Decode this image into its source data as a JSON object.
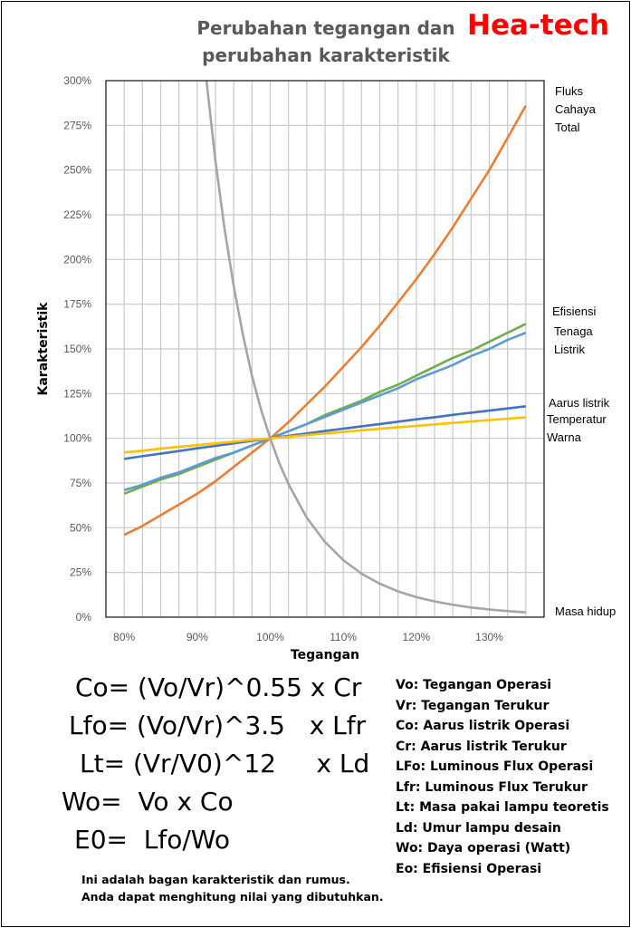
{
  "brand": "Hea-tech",
  "chart_data": {
    "type": "line",
    "title": "Perubahan tegangan dan perubahan karakteristik",
    "xlabel": "Tegangan",
    "ylabel": "Karakteristik",
    "xlim": [
      77.5,
      137.5
    ],
    "ylim": [
      0,
      300
    ],
    "x_ticks": [
      "80%",
      "90%",
      "100%",
      "110%",
      "120%",
      "130%"
    ],
    "x_tick_values": [
      80,
      90,
      100,
      110,
      120,
      130
    ],
    "y_ticks": [
      "0%",
      "25%",
      "50%",
      "75%",
      "100%",
      "125%",
      "150%",
      "175%",
      "200%",
      "225%",
      "250%",
      "275%",
      "300%"
    ],
    "grid": true,
    "x": [
      80,
      82.5,
      85,
      87.5,
      90,
      92.5,
      95,
      97.5,
      100,
      102.5,
      105,
      107.5,
      110,
      112.5,
      115,
      117.5,
      120,
      122.5,
      125,
      127.5,
      130,
      132.5,
      135
    ],
    "series": [
      {
        "name": "Fluks Cahaya Total",
        "color": "#ed7d31",
        "values": [
          46,
          51,
          57,
          63,
          69,
          76,
          84,
          92,
          100,
          109,
          119,
          129,
          140,
          151,
          163,
          176,
          189,
          203,
          218,
          234,
          250,
          268,
          286
        ]
      },
      {
        "name": "Efisiensi",
        "color": "#70ad47",
        "values": [
          69,
          73,
          77,
          80,
          84,
          88,
          92,
          96,
          100,
          104,
          108,
          113,
          117,
          121,
          126,
          130,
          135,
          140,
          145,
          149,
          154,
          159,
          164
        ]
      },
      {
        "name": "Tenaga Listrik",
        "color": "#5b9bd5",
        "values": [
          71,
          74,
          78,
          81,
          85,
          89,
          92,
          96,
          100,
          104,
          108,
          112,
          116,
          120,
          124,
          128,
          133,
          137,
          141,
          146,
          150,
          155,
          159
        ]
      },
      {
        "name": "Aarus listrik",
        "color": "#4472c4",
        "values": [
          88.5,
          90.0,
          91.4,
          92.9,
          94.4,
          95.8,
          97.2,
          98.6,
          100,
          101.4,
          102.7,
          104.1,
          105.4,
          106.7,
          108.0,
          109.3,
          110.6,
          111.8,
          113.1,
          114.3,
          115.5,
          116.7,
          117.9
        ]
      },
      {
        "name": "Temperatur Warna",
        "color": "#ffc000",
        "values": [
          92.1,
          93.1,
          94.2,
          95.2,
          96.2,
          97.2,
          98.1,
          99.1,
          100,
          100.9,
          101.8,
          102.7,
          103.6,
          104.5,
          105.3,
          106.2,
          107.0,
          107.8,
          108.6,
          109.4,
          110.2,
          111.0,
          111.7
        ]
      },
      {
        "name": "Masa hidup",
        "color": "#a5a5a5",
        "x": [
          91,
          92.5,
          93.75,
          95,
          96.25,
          97.5,
          98.75,
          100,
          101.25,
          102.5,
          105,
          107.5,
          110,
          112.5,
          115,
          117.5,
          120,
          122.5,
          125,
          127.5,
          130,
          132.5,
          135
        ],
        "values": [
          310,
          255,
          217,
          185,
          158,
          135,
          116,
          100,
          86,
          74.4,
          55.7,
          42.0,
          31.9,
          24.3,
          18.7,
          14.4,
          11.2,
          8.8,
          6.9,
          5.4,
          4.3,
          3.4,
          2.7
        ]
      }
    ],
    "right_labels": [
      {
        "lines": [
          "Fluks",
          "Cahaya",
          "Total"
        ]
      },
      {
        "lines": [
          "Efisiensi"
        ]
      },
      {
        "lines": [
          "Tenaga",
          "Listrik"
        ]
      },
      {
        "lines": [
          "Aarus listrik"
        ]
      },
      {
        "lines": [
          "Temperatur",
          "Warna"
        ]
      },
      {
        "lines": [
          "Masa hidup"
        ]
      }
    ]
  },
  "title_lines": [
    "Perubahan tegangan dan",
    "perubahan karakteristik"
  ],
  "formulas": [
    "Co= (Vo/Vr)^0.55 x Cr",
    "Lfo= (Vo/Vr)^3.5   x Lfr",
    "Lt= (Vr/V0)^12     x Ld",
    "Wo=  Vo x Co",
    "E0=  Lfo/Wo"
  ],
  "legend": [
    "Vo: Tegangan Operasi",
    "Vr: Tegangan Terukur",
    "Co: Aarus listrik Operasi",
    "Cr: Aarus listrik Terukur",
    "LFo:  Luminous Flux Operasi",
    "Lfr:  Luminous Flux Terukur",
    "Lt: Masa pakai lampu teoretis",
    "Ld: Umur lampu desain",
    "Wo: Daya operasi (Watt)",
    "Eo: Efisiensi Operasi"
  ],
  "note": [
    "Ini adalah bagan karakteristik dan rumus.",
    "Anda dapat menghitung nilai yang dibutuhkan."
  ]
}
